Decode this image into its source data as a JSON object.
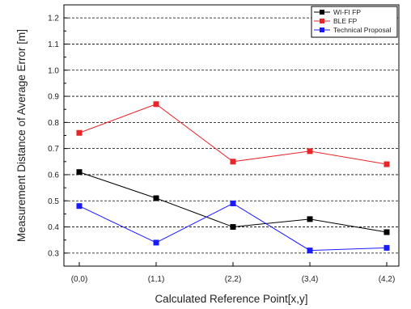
{
  "chart_data": {
    "type": "line",
    "title": "",
    "xlabel": "Calculated Reference Point[x,y]",
    "ylabel": "Measurement Distance of Average Error [m]",
    "categories": [
      "(0,0)",
      "(1,1)",
      "(2,2)",
      "(3,4)",
      "(4,2)"
    ],
    "ylim": [
      0.25,
      1.25
    ],
    "yticks": [
      "0.3",
      "0.4",
      "0.5",
      "0.6",
      "0.7",
      "0.8",
      "0.9",
      "1.0",
      "1.1",
      "1.2"
    ],
    "grid": "horizontal dashed",
    "legend_position": "top-right",
    "series": [
      {
        "name": "WI-FI FP",
        "color": "#000000",
        "values": [
          0.61,
          0.51,
          0.4,
          0.43,
          0.38
        ]
      },
      {
        "name": "BLE FP",
        "color": "#e8262a",
        "values": [
          0.76,
          0.87,
          0.65,
          0.69,
          0.64
        ]
      },
      {
        "name": "Technical Proposal",
        "color": "#1a1aff",
        "values": [
          0.48,
          0.34,
          0.49,
          0.31,
          0.32
        ]
      }
    ]
  }
}
